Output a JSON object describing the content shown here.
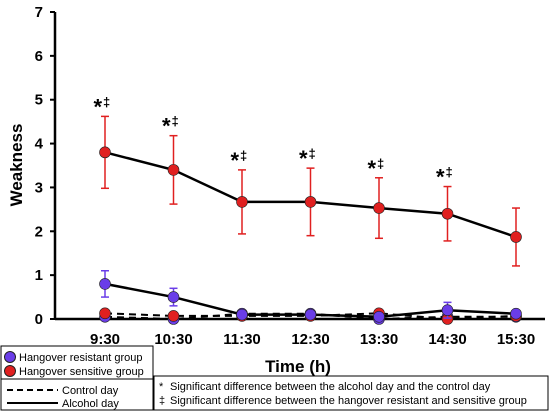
{
  "chart_data": {
    "type": "line",
    "title": "",
    "xlabel": "Time (h)",
    "ylabel": "Weakness",
    "ylim": [
      0,
      7
    ],
    "yticks": [
      0,
      1,
      2,
      3,
      4,
      5,
      6,
      7
    ],
    "categories": [
      "9:30",
      "10:30",
      "11:30",
      "12:30",
      "13:30",
      "14:30",
      "15:30"
    ],
    "series": [
      {
        "name": "Hangover sensitive group",
        "day": "Alcohol day",
        "color": "#e02020",
        "values": [
          3.8,
          3.4,
          2.67,
          2.67,
          2.53,
          2.4,
          1.87
        ],
        "error": [
          0.82,
          0.78,
          0.73,
          0.77,
          0.69,
          0.62,
          0.66
        ]
      },
      {
        "name": "Hangover resistant group",
        "day": "Alcohol day",
        "color": "#6a3de8",
        "values": [
          0.8,
          0.5,
          0.1,
          0.1,
          0.05,
          0.2,
          0.12
        ],
        "error": [
          0.3,
          0.2,
          0.05,
          0.05,
          0.05,
          0.18,
          0.06
        ]
      },
      {
        "name": "Hangover sensitive group",
        "day": "Control day",
        "color": "#e02020",
        "values": [
          0.13,
          0.07,
          0.07,
          0.07,
          0.13,
          0.0,
          0.07
        ],
        "error": [
          0.07,
          0.05,
          0.05,
          0.05,
          0.07,
          0.0,
          0.05
        ]
      },
      {
        "name": "Hangover resistant group",
        "day": "Control day",
        "color": "#6a3de8",
        "values": [
          0.05,
          0.0,
          0.12,
          0.12,
          0.0,
          0.05,
          0.05
        ],
        "error": [
          0.0,
          0.0,
          0.05,
          0.05,
          0.0,
          0.0,
          0.0
        ]
      }
    ],
    "significance": {
      "categories": [
        "9:30",
        "10:30",
        "11:30",
        "12:30",
        "13:30",
        "14:30"
      ],
      "star": "*",
      "dagger": "‡"
    },
    "legend": {
      "groups": [
        {
          "label": "Hangover resistant group",
          "color": "#6a3de8"
        },
        {
          "label": "Hangover sensitive group",
          "color": "#e02020"
        }
      ],
      "days": [
        {
          "label": "Control day",
          "style": "dashed"
        },
        {
          "label": "Alcohol day",
          "style": "solid"
        }
      ],
      "notes": [
        {
          "symbol": "*",
          "text": "Significant difference between the alcohol day and the control day"
        },
        {
          "symbol": "‡",
          "text": "Significant difference between the hangover resistant and sensitive group"
        }
      ]
    },
    "grid": false
  }
}
